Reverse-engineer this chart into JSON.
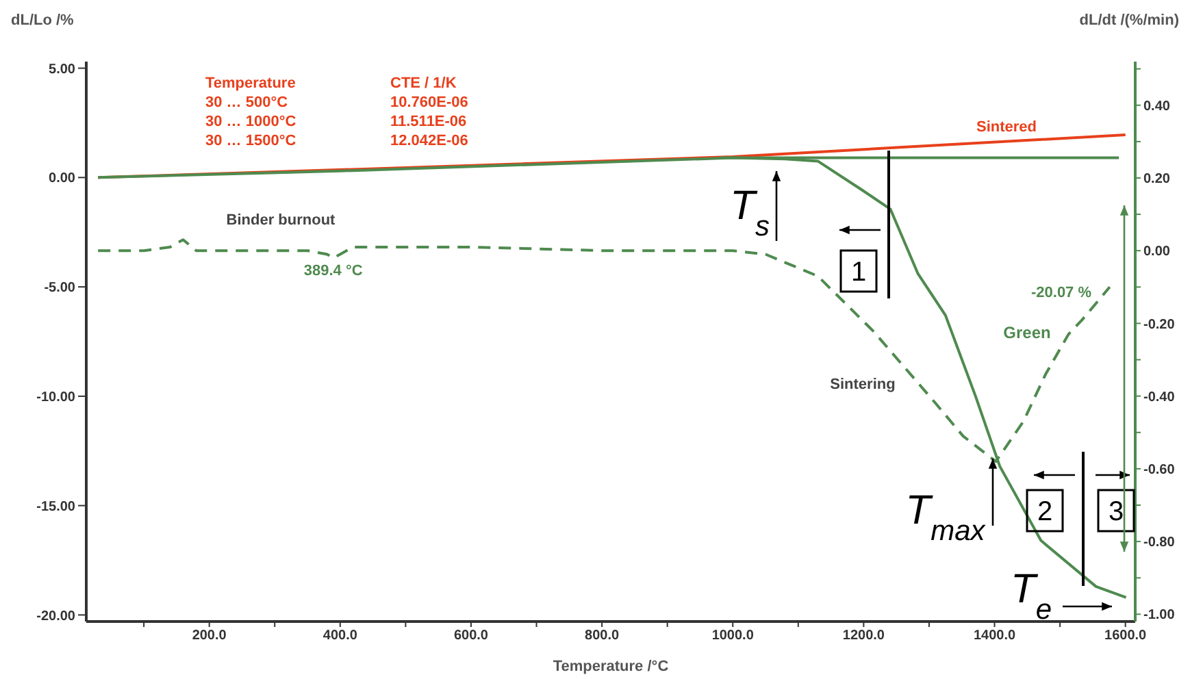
{
  "chart_data": {
    "type": "line",
    "xlabel": "Temperature /°C",
    "ylabel": "dL/Lo /%",
    "y2label": "dL/dt /(%/min)",
    "xlim": [
      12,
      1615
    ],
    "ylim": [
      -20.3,
      5.3
    ],
    "y2lim": [
      -1.02,
      0.52
    ],
    "xticks": [
      {
        "value": 100,
        "label": null
      },
      {
        "value": 200,
        "label": "200.0"
      },
      {
        "value": 300,
        "label": null
      },
      {
        "value": 400,
        "label": "400.0"
      },
      {
        "value": 500,
        "label": null
      },
      {
        "value": 600,
        "label": "600.0"
      },
      {
        "value": 700,
        "label": null
      },
      {
        "value": 800,
        "label": "800.0"
      },
      {
        "value": 900,
        "label": null
      },
      {
        "value": 1000,
        "label": "1000.0"
      },
      {
        "value": 1100,
        "label": null
      },
      {
        "value": 1200,
        "label": "1200.0"
      },
      {
        "value": 1300,
        "label": null
      },
      {
        "value": 1400,
        "label": "1400.0"
      },
      {
        "value": 1500,
        "label": null
      },
      {
        "value": 1600,
        "label": "1600.0"
      }
    ],
    "yticks": [
      {
        "value": 5,
        "label": "5.00"
      },
      {
        "value": 0,
        "label": "0.00"
      },
      {
        "value": -5,
        "label": "-5.00"
      },
      {
        "value": -10,
        "label": "-10.00"
      },
      {
        "value": -15,
        "label": "-15.00"
      },
      {
        "value": -20,
        "label": "-20.00"
      }
    ],
    "y2ticks": [
      {
        "value": 0.5,
        "label": null
      },
      {
        "value": 0.4,
        "label": "0.40"
      },
      {
        "value": 0.3,
        "label": null
      },
      {
        "value": 0.2,
        "label": "0.20"
      },
      {
        "value": 0.1,
        "label": null
      },
      {
        "value": 0,
        "label": "0.00"
      },
      {
        "value": -0.1,
        "label": null
      },
      {
        "value": -0.2,
        "label": "-0.20"
      },
      {
        "value": -0.3,
        "label": null
      },
      {
        "value": -0.4,
        "label": "-0.40"
      },
      {
        "value": -0.5,
        "label": null
      },
      {
        "value": -0.6,
        "label": "-0.60"
      },
      {
        "value": -0.7,
        "label": null
      },
      {
        "value": -0.8,
        "label": "-0.80"
      },
      {
        "value": -0.9,
        "label": null
      },
      {
        "value": -1,
        "label": "-1.00"
      }
    ],
    "series": [
      {
        "color": "#e8401c",
        "line_style": "solid",
        "x": [
          30,
          500,
          1000,
          1250,
          1600
        ],
        "values": [
          0,
          0.45,
          0.95,
          1.37,
          1.95
        ]
      },
      {
        "color": "#4f8a4f",
        "line_style": "solid",
        "x": [
          30,
          400,
          800,
          1000,
          1080,
          1130,
          1199,
          1241,
          1283,
          1325,
          1371,
          1408,
          1471,
          1555,
          1601
        ],
        "values": [
          0,
          0.3,
          0.7,
          0.9,
          0.85,
          0.75,
          -0.6,
          -1.45,
          -4.4,
          -6.3,
          -10,
          -13.2,
          -16.6,
          -18.7,
          -19.2
        ]
      },
      {
        "color": "#4f8a4f",
        "line_style": "solid",
        "x": [
          980,
          1590
        ],
        "values": [
          0.9,
          0.9
        ]
      },
      {
        "color": "#4f8a4f",
        "line_style": "dashed",
        "axis": "y2",
        "x": [
          30,
          100,
          140,
          160,
          180,
          250,
          350,
          380,
          389.4,
          400,
          420,
          600,
          800,
          1000,
          1050,
          1130,
          1214,
          1310,
          1352,
          1402,
          1444,
          1478,
          1513,
          1534,
          1576
        ],
        "values": [
          0,
          0,
          0.01,
          0.03,
          0,
          0,
          0,
          -0.01,
          -0.02,
          -0.01,
          0.01,
          0.01,
          0,
          0,
          -0.01,
          -0.07,
          -0.22,
          -0.42,
          -0.51,
          -0.58,
          -0.47,
          -0.34,
          -0.23,
          -0.19,
          -0.1
        ]
      }
    ],
    "annotations": [
      "Temperature",
      "CTE / 1/K",
      "30 … 500°C",
      "10.760E-06",
      "30 … 1000°C",
      "11.511E-06",
      "30 … 1500°C",
      "12.042E-06",
      "Sintered",
      "Binder burnout",
      {
        "text": "389.4 °C",
        "x": 389.4,
        "y": -3.45
      },
      "Green",
      "Sintering",
      "-20.07 %",
      "T$_{s}$",
      {
        "text": "T$_{max}$",
        "x": 1398,
        "y": -13
      },
      "T$_{e}$",
      "1",
      "2",
      "3"
    ]
  }
}
